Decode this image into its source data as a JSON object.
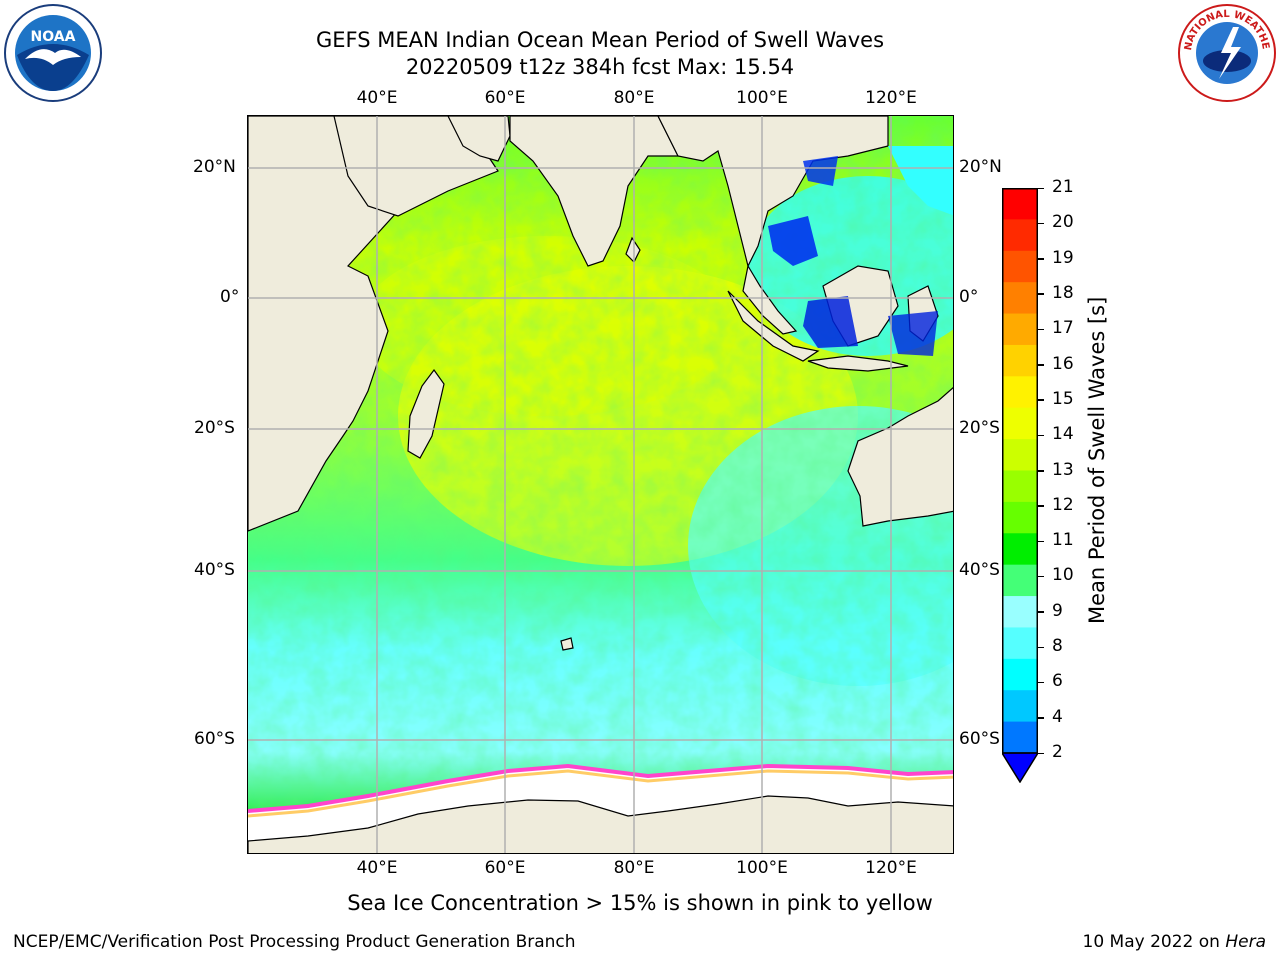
{
  "header": {
    "title_line1": "GEFS MEAN Indian Ocean Mean Period of Swell Waves",
    "title_line2": "20220509 t12z 384h fcst   Max: 15.54"
  },
  "map": {
    "lon_ticks": [
      "40°E",
      "60°E",
      "80°E",
      "100°E",
      "120°E"
    ],
    "lat_ticks": [
      "20°N",
      "0°",
      "20°S",
      "40°S",
      "60°S"
    ],
    "colors": {
      "land": "#efecdc",
      "ocean_low": "#00ffff",
      "ocean_mid": "#55ff55",
      "ocean_high": "#eeff00",
      "ice": "#ffffff",
      "ice_edge": "#ff44cc",
      "grid": "#b0b0b0"
    }
  },
  "colorbar": {
    "label": "Mean Period of Swell Waves [s]",
    "ticks": [
      "21",
      "20",
      "19",
      "18",
      "17",
      "16",
      "15",
      "14",
      "13",
      "12",
      "11",
      "10",
      "9",
      "8",
      "6",
      "4",
      "2"
    ],
    "colors": [
      "#ff0000",
      "#ff2a00",
      "#ff5400",
      "#ff8000",
      "#ffaa00",
      "#ffd200",
      "#fff200",
      "#eeff00",
      "#ccff00",
      "#99ff00",
      "#66ff00",
      "#00ee00",
      "#44ff77",
      "#99ffff",
      "#55ffff",
      "#00ffff",
      "#00c8ff",
      "#0078ff"
    ],
    "under_color": "#0000ff"
  },
  "note": "Sea Ice Concentration > 15% is shown in pink to yellow",
  "footer": {
    "left": "NCEP/EMC/Verification Post Processing Product Generation Branch",
    "right_date": "10 May 2022 on ",
    "right_host": "Hera"
  },
  "logos": {
    "noaa_text": "NOAA",
    "nws_text": "NATIONAL WEATHER SERVICE"
  }
}
